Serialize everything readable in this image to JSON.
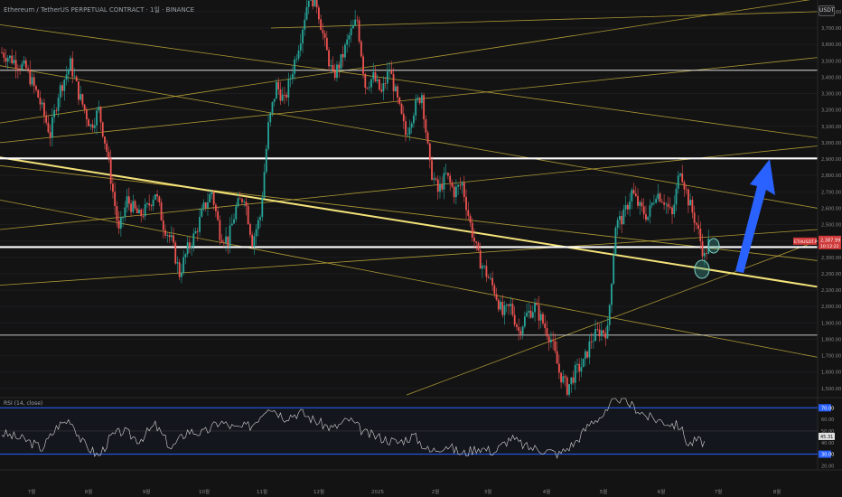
{
  "header": {
    "title": "Ethereum / TetherUS PERPETUAL CONTRACT · 1일 · BINANCE",
    "currency_button": "USDT"
  },
  "colors": {
    "background": "#131314",
    "up_candle": "#26a69a",
    "down_candle": "#ef5350",
    "trend_line": "#c9b03a",
    "highlight_line": "#f3e27a",
    "level_line": "#ffffff",
    "arrow": "#2962ff",
    "rsi_line": "#d8d8d8",
    "rsi_band": "#2962ff",
    "circle": "#7fd3c4"
  },
  "chart_data": {
    "type": "candlestick",
    "symbol": "ETHUSDT.P",
    "y_ticks": [
      "3,800.00",
      "3,700.00",
      "3,600.00",
      "3,500.00",
      "3,400.00",
      "3,300.00",
      "3,200.00",
      "3,100.00",
      "3,000.00",
      "2,900.00",
      "2,800.00",
      "2,700.00",
      "2,600.00",
      "2,500.00",
      "2,400.00",
      "2,300.00",
      "2,200.00",
      "2,100.00",
      "2,000.00",
      "1,900.00",
      "1,800.00",
      "1,700.00",
      "1,600.00",
      "1,500.00"
    ],
    "x_ticks": [
      "7월",
      "8월",
      "9월",
      "10월",
      "11월",
      "12월",
      "2025",
      "2월",
      "3월",
      "4월",
      "5월",
      "6월",
      "7월",
      "8월"
    ],
    "levels": [
      {
        "label": "3,441.74",
        "value": 3441.74,
        "style": "thin"
      },
      {
        "label": "2,904.09",
        "value": 2904.09,
        "style": "bold"
      },
      {
        "label": "2,362.87",
        "value": 2362.87,
        "style": "bold"
      },
      {
        "label": "1,825.18",
        "value": 1825.18,
        "style": "thin"
      }
    ],
    "price_tag": {
      "symbol": "ETHUSDT.P",
      "price": "2,387.99",
      "time": "10:12:22"
    },
    "price_path": [
      [
        0,
        3550
      ],
      [
        6,
        3450
      ],
      [
        9,
        3280
      ],
      [
        12,
        3050
      ],
      [
        14,
        3300
      ],
      [
        17,
        3480
      ],
      [
        19,
        3300
      ],
      [
        22,
        3100
      ],
      [
        24,
        3200
      ],
      [
        26,
        2950
      ],
      [
        29,
        2450
      ],
      [
        31,
        2650
      ],
      [
        34,
        2550
      ],
      [
        36,
        2600
      ],
      [
        38,
        2700
      ],
      [
        40,
        2500
      ],
      [
        42,
        2400
      ],
      [
        44,
        2200
      ],
      [
        46,
        2350
      ],
      [
        48,
        2450
      ],
      [
        50,
        2600
      ],
      [
        52,
        2700
      ],
      [
        54,
        2450
      ],
      [
        56,
        2400
      ],
      [
        58,
        2600
      ],
      [
        60,
        2680
      ],
      [
        62,
        2400
      ],
      [
        64,
        2550
      ],
      [
        66,
        3100
      ],
      [
        68,
        3350
      ],
      [
        70,
        3250
      ],
      [
        72,
        3450
      ],
      [
        74,
        3650
      ],
      [
        76,
        3900
      ],
      [
        78,
        3850
      ],
      [
        80,
        3600
      ],
      [
        82,
        3400
      ],
      [
        84,
        3500
      ],
      [
        86,
        3650
      ],
      [
        88,
        3750
      ],
      [
        90,
        3350
      ],
      [
        92,
        3400
      ],
      [
        94,
        3300
      ],
      [
        96,
        3450
      ],
      [
        98,
        3250
      ],
      [
        100,
        3050
      ],
      [
        102,
        3200
      ],
      [
        104,
        3300
      ],
      [
        106,
        2850
      ],
      [
        108,
        2700
      ],
      [
        110,
        2800
      ],
      [
        112,
        2700
      ],
      [
        114,
        2750
      ],
      [
        116,
        2500
      ],
      [
        118,
        2300
      ],
      [
        120,
        2200
      ],
      [
        122,
        2100
      ],
      [
        124,
        1950
      ],
      [
        126,
        2000
      ],
      [
        128,
        1850
      ],
      [
        130,
        1950
      ],
      [
        132,
        2000
      ],
      [
        134,
        1900
      ],
      [
        136,
        1800
      ],
      [
        138,
        1600
      ],
      [
        140,
        1500
      ],
      [
        142,
        1600
      ],
      [
        144,
        1650
      ],
      [
        146,
        1800
      ],
      [
        148,
        1850
      ],
      [
        150,
        1850
      ],
      [
        152,
        2500
      ],
      [
        154,
        2550
      ],
      [
        156,
        2700
      ],
      [
        158,
        2600
      ],
      [
        160,
        2550
      ],
      [
        162,
        2700
      ],
      [
        164,
        2650
      ],
      [
        166,
        2550
      ],
      [
        168,
        2850
      ],
      [
        170,
        2650
      ],
      [
        172,
        2500
      ],
      [
        174,
        2300
      ],
      [
        175,
        2390
      ]
    ],
    "rsi": {
      "title": "RSI (14, close)",
      "upper": 70,
      "lower": 30,
      "value": "45.31",
      "y_ticks": [
        "70.00",
        "60.00",
        "50.00",
        "40.00",
        "30.00",
        "20.00"
      ],
      "path": [
        [
          0,
          48
        ],
        [
          6,
          42
        ],
        [
          10,
          35
        ],
        [
          14,
          55
        ],
        [
          17,
          60
        ],
        [
          20,
          40
        ],
        [
          24,
          28
        ],
        [
          27,
          45
        ],
        [
          30,
          50
        ],
        [
          34,
          42
        ],
        [
          38,
          55
        ],
        [
          42,
          35
        ],
        [
          46,
          50
        ],
        [
          50,
          48
        ],
        [
          54,
          58
        ],
        [
          58,
          52
        ],
        [
          62,
          55
        ],
        [
          66,
          72
        ],
        [
          70,
          62
        ],
        [
          74,
          66
        ],
        [
          78,
          58
        ],
        [
          82,
          52
        ],
        [
          86,
          60
        ],
        [
          90,
          48
        ],
        [
          94,
          44
        ],
        [
          98,
          40
        ],
        [
          102,
          46
        ],
        [
          106,
          32
        ],
        [
          110,
          38
        ],
        [
          114,
          30
        ],
        [
          118,
          36
        ],
        [
          122,
          32
        ],
        [
          126,
          44
        ],
        [
          130,
          36
        ],
        [
          134,
          34
        ],
        [
          138,
          30
        ],
        [
          142,
          40
        ],
        [
          146,
          58
        ],
        [
          150,
          66
        ],
        [
          152,
          80
        ],
        [
          156,
          72
        ],
        [
          160,
          62
        ],
        [
          164,
          58
        ],
        [
          168,
          54
        ],
        [
          170,
          38
        ],
        [
          172,
          42
        ],
        [
          174,
          40
        ]
      ]
    }
  }
}
